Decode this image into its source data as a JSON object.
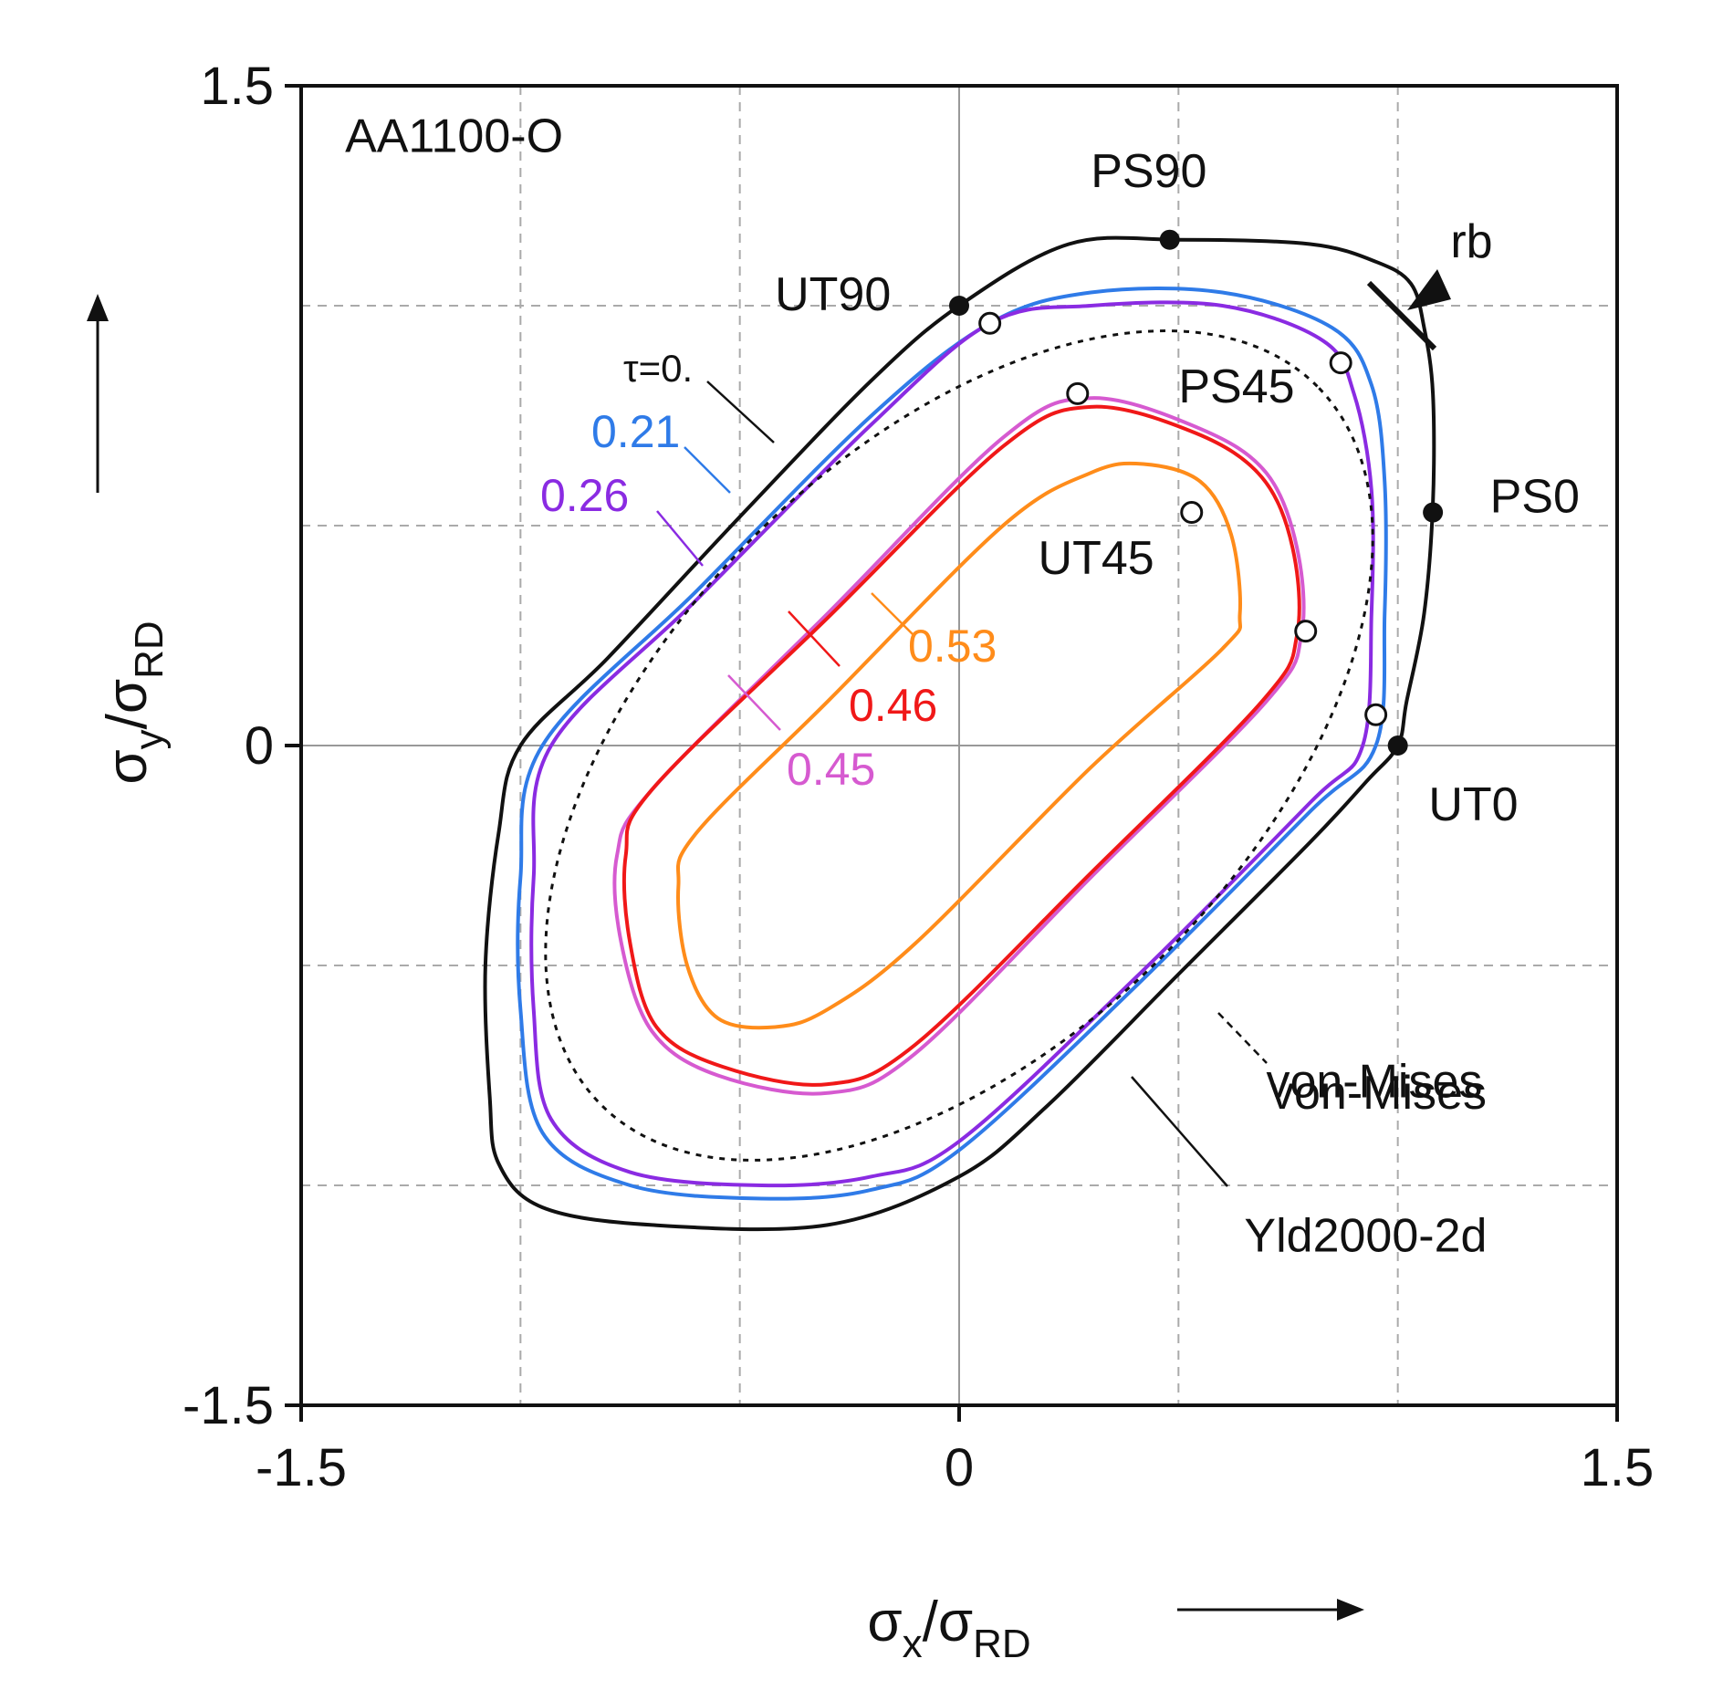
{
  "chart_data": {
    "type": "line",
    "title": "AA1100-O",
    "xlabel": {
      "main": "σ",
      "sub1": "x",
      "mid": "/σ",
      "sub2": "RD"
    },
    "ylabel": {
      "main": "σ",
      "sub1": "y",
      "mid": "/σ",
      "sub2": "RD"
    },
    "xlim": [
      -1.5,
      1.5
    ],
    "ylim": [
      -1.5,
      1.5
    ],
    "grid": true,
    "x_ticks": [
      {
        "value": -1.5,
        "label": "-1.5"
      },
      {
        "value": 0,
        "label": "0"
      },
      {
        "value": 1.5,
        "label": "1.5"
      }
    ],
    "y_ticks": [
      {
        "value": 1.5,
        "label": "1.5"
      },
      {
        "value": 0,
        "label": "0"
      },
      {
        "value": -1.5,
        "label": "-1.5"
      }
    ],
    "series": [
      {
        "name": "τ=0.",
        "label": "τ=0.",
        "color": "#111111",
        "points": [
          [
            1.0,
            0.0
          ],
          [
            1.02,
            0.1
          ],
          [
            1.06,
            0.3
          ],
          [
            1.08,
            0.55
          ],
          [
            1.08,
            0.8
          ],
          [
            1.06,
            0.95
          ],
          [
            1.03,
            1.05
          ],
          [
            0.95,
            1.1
          ],
          [
            0.8,
            1.14
          ],
          [
            0.5,
            1.15
          ],
          [
            0.25,
            1.14
          ],
          [
            0.0,
            1.0
          ],
          [
            -0.2,
            0.83
          ],
          [
            -0.5,
            0.52
          ],
          [
            -0.8,
            0.2
          ],
          [
            -1.0,
            0.0
          ],
          [
            -1.05,
            -0.2
          ],
          [
            -1.08,
            -0.5
          ],
          [
            -1.07,
            -0.8
          ],
          [
            -1.05,
            -0.95
          ],
          [
            -0.95,
            -1.05
          ],
          [
            -0.7,
            -1.09
          ],
          [
            -0.3,
            -1.09
          ],
          [
            0.0,
            -0.98
          ],
          [
            0.2,
            -0.82
          ],
          [
            0.5,
            -0.52
          ],
          [
            0.8,
            -0.22
          ],
          [
            0.93,
            -0.08
          ],
          [
            1.0,
            0.0
          ]
        ]
      },
      {
        "name": "0.21",
        "label": "0.21",
        "color": "#2f7be8",
        "points": [
          [
            0.95,
            0.0
          ],
          [
            0.97,
            0.3
          ],
          [
            0.97,
            0.6
          ],
          [
            0.94,
            0.82
          ],
          [
            0.85,
            0.95
          ],
          [
            0.6,
            1.03
          ],
          [
            0.3,
            1.03
          ],
          [
            0.07,
            0.96
          ],
          [
            -0.2,
            0.75
          ],
          [
            -0.6,
            0.35
          ],
          [
            -0.95,
            0.0
          ],
          [
            -1.0,
            -0.3
          ],
          [
            -1.0,
            -0.6
          ],
          [
            -0.95,
            -0.88
          ],
          [
            -0.75,
            -1.0
          ],
          [
            -0.45,
            -1.03
          ],
          [
            -0.2,
            -1.01
          ],
          [
            0.0,
            -0.92
          ],
          [
            0.4,
            -0.55
          ],
          [
            0.8,
            -0.15
          ],
          [
            0.95,
            0.0
          ]
        ]
      },
      {
        "name": "0.26",
        "label": "0.26",
        "color": "#8a2be2",
        "points": [
          [
            0.92,
            0.0
          ],
          [
            0.94,
            0.3
          ],
          [
            0.94,
            0.58
          ],
          [
            0.9,
            0.8
          ],
          [
            0.83,
            0.92
          ],
          [
            0.6,
            1.0
          ],
          [
            0.3,
            1.0
          ],
          [
            0.07,
            0.96
          ],
          [
            -0.2,
            0.73
          ],
          [
            -0.6,
            0.33
          ],
          [
            -0.93,
            0.0
          ],
          [
            -0.97,
            -0.3
          ],
          [
            -0.97,
            -0.6
          ],
          [
            -0.93,
            -0.85
          ],
          [
            -0.75,
            -0.97
          ],
          [
            -0.45,
            -1.0
          ],
          [
            -0.2,
            -0.98
          ],
          [
            0.0,
            -0.9
          ],
          [
            0.4,
            -0.53
          ],
          [
            0.8,
            -0.13
          ],
          [
            0.92,
            0.0
          ]
        ]
      },
      {
        "name": "0.45",
        "label": "0.45",
        "color": "#d65ad0",
        "points": [
          [
            0.78,
            0.25
          ],
          [
            0.77,
            0.45
          ],
          [
            0.7,
            0.62
          ],
          [
            0.55,
            0.72
          ],
          [
            0.3,
            0.79
          ],
          [
            0.1,
            0.7
          ],
          [
            -0.3,
            0.3
          ],
          [
            -0.7,
            -0.1
          ],
          [
            -0.78,
            -0.25
          ],
          [
            -0.77,
            -0.45
          ],
          [
            -0.7,
            -0.65
          ],
          [
            -0.55,
            -0.75
          ],
          [
            -0.3,
            -0.79
          ],
          [
            -0.1,
            -0.7
          ],
          [
            0.3,
            -0.3
          ],
          [
            0.7,
            0.1
          ],
          [
            0.78,
            0.25
          ]
        ]
      },
      {
        "name": "0.46",
        "label": "0.46",
        "color": "#f01818",
        "points": [
          [
            0.77,
            0.25
          ],
          [
            0.76,
            0.45
          ],
          [
            0.69,
            0.61
          ],
          [
            0.54,
            0.71
          ],
          [
            0.3,
            0.77
          ],
          [
            0.1,
            0.68
          ],
          [
            -0.3,
            0.29
          ],
          [
            -0.7,
            -0.1
          ],
          [
            -0.76,
            -0.25
          ],
          [
            -0.75,
            -0.45
          ],
          [
            -0.69,
            -0.64
          ],
          [
            -0.54,
            -0.73
          ],
          [
            -0.3,
            -0.77
          ],
          [
            -0.1,
            -0.68
          ],
          [
            0.3,
            -0.29
          ],
          [
            0.69,
            0.1
          ],
          [
            0.77,
            0.25
          ]
        ]
      },
      {
        "name": "0.53",
        "label": "0.53",
        "color": "#ff8c1a",
        "points": [
          [
            0.64,
            0.3
          ],
          [
            0.62,
            0.48
          ],
          [
            0.55,
            0.6
          ],
          [
            0.42,
            0.64
          ],
          [
            0.3,
            0.62
          ],
          [
            0.1,
            0.5
          ],
          [
            -0.3,
            0.1
          ],
          [
            -0.6,
            -0.2
          ],
          [
            -0.64,
            -0.32
          ],
          [
            -0.62,
            -0.5
          ],
          [
            -0.55,
            -0.62
          ],
          [
            -0.42,
            -0.64
          ],
          [
            -0.3,
            -0.6
          ],
          [
            -0.1,
            -0.45
          ],
          [
            0.3,
            -0.05
          ],
          [
            0.6,
            0.22
          ],
          [
            0.64,
            0.3
          ]
        ]
      },
      {
        "name": "von-Mises",
        "label": "von-Mises",
        "color": "#111111",
        "dashed": true,
        "ellipse": {
          "a": 1.1547,
          "b": 0.6667,
          "angle_deg": 45
        }
      }
    ],
    "experimental_points": {
      "filled": [
        {
          "name": "UT0",
          "x": 1.0,
          "y": 0.0
        },
        {
          "name": "PS0",
          "x": 1.08,
          "y": 0.53
        },
        {
          "name": "PS90",
          "x": 0.48,
          "y": 1.15
        },
        {
          "name": "UT90",
          "x": 0.0,
          "y": 1.0
        }
      ],
      "open": [
        {
          "x": 0.07,
          "y": 0.96
        },
        {
          "x": 0.87,
          "y": 0.87
        },
        {
          "x": 0.27,
          "y": 0.8
        },
        {
          "x": 0.53,
          "y": 0.53
        },
        {
          "x": 0.79,
          "y": 0.26
        },
        {
          "x": 0.95,
          "y": 0.07
        }
      ]
    },
    "annotations": [
      {
        "text": "AA1100-O",
        "x": -1.4,
        "y": 1.35,
        "color": "#111111"
      },
      {
        "text": "PS90",
        "x": 0.3,
        "y": 1.27,
        "color": "#111111"
      },
      {
        "text": "rb",
        "x": 1.12,
        "y": 1.11,
        "color": "#111111"
      },
      {
        "text": "UT90",
        "x": -0.42,
        "y": 0.99,
        "color": "#111111"
      },
      {
        "text": "PS45",
        "x": 0.5,
        "y": 0.78,
        "color": "#111111"
      },
      {
        "text": "PS0",
        "x": 1.21,
        "y": 0.53,
        "color": "#111111"
      },
      {
        "text": "UT45",
        "x": 0.18,
        "y": 0.39,
        "color": "#111111"
      },
      {
        "text": "UT0",
        "x": 1.07,
        "y": -0.17,
        "color": "#111111"
      },
      {
        "text": "von-Mises",
        "x": 0.7,
        "y": -0.8,
        "color": "#111111"
      },
      {
        "text": "Yld2000-2d",
        "x": 0.65,
        "y": -1.15,
        "color": "#111111"
      }
    ]
  }
}
